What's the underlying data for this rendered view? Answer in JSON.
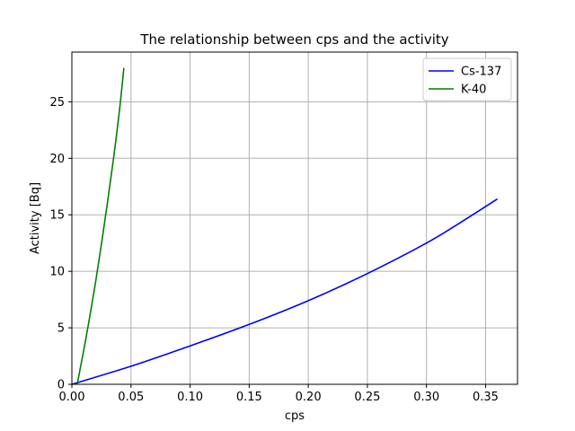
{
  "chart_data": {
    "type": "line",
    "title": "The relationship between cps and the activity",
    "xlabel": "cps",
    "ylabel": "Activity [Bq]",
    "xlim": [
      0.0,
      0.377
    ],
    "ylim": [
      0,
      29.4
    ],
    "xticks": [
      0.0,
      0.05,
      0.1,
      0.15,
      0.2,
      0.25,
      0.3,
      0.35
    ],
    "xtick_labels": [
      "0.00",
      "0.05",
      "0.10",
      "0.15",
      "0.20",
      "0.25",
      "0.30",
      "0.35"
    ],
    "yticks": [
      0,
      5,
      10,
      15,
      20,
      25
    ],
    "ytick_labels": [
      "0",
      "5",
      "10",
      "15",
      "20",
      "25"
    ],
    "grid": true,
    "legend": "top-right",
    "series": [
      {
        "name": "Cs-137",
        "color": "#0000ff",
        "x": [
          0.0,
          0.05,
          0.1,
          0.15,
          0.2,
          0.25,
          0.3,
          0.33,
          0.36
        ],
        "y": [
          0.0,
          1.6,
          3.4,
          5.3,
          7.4,
          9.8,
          12.5,
          14.4,
          16.4
        ]
      },
      {
        "name": "K-40",
        "color": "#008000",
        "x": [
          0.0045,
          0.01,
          0.015,
          0.02,
          0.025,
          0.03,
          0.035,
          0.04,
          0.044
        ],
        "y": [
          0.0,
          3.0,
          5.9,
          9.0,
          12.4,
          16.0,
          19.8,
          24.0,
          28.0
        ]
      }
    ]
  }
}
